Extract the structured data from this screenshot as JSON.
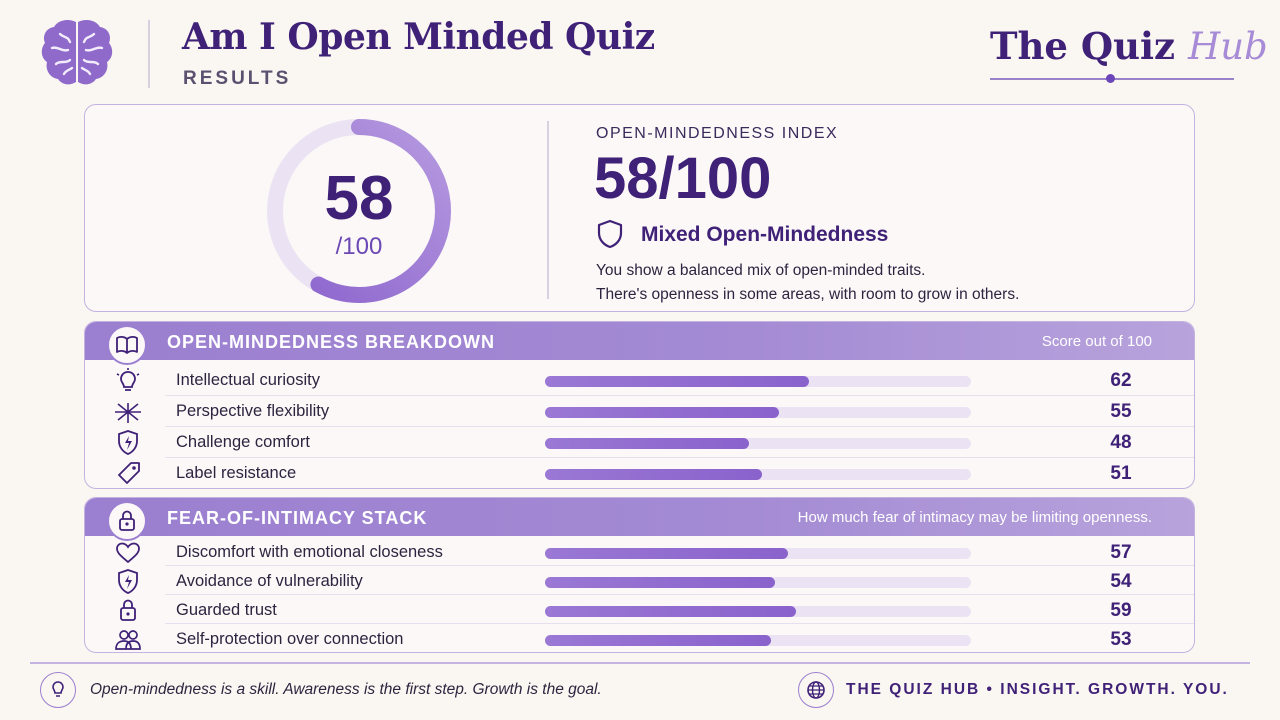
{
  "header": {
    "title": "Am I Open Minded Quiz",
    "subtitle": "RESULTS",
    "logo_main": "The Quiz",
    "logo_accent": "Hub"
  },
  "score": {
    "value": "58",
    "out_of": "/100",
    "fraction": 0.58,
    "index_label": "OPEN-MINDEDNESS INDEX",
    "index_value": "58/100",
    "level": "Mixed Open-Mindedness",
    "description_line1": "You show a balanced mix of open-minded traits.",
    "description_line2": "There's openness in some areas, with room to grow in others."
  },
  "breakdown": {
    "title": "OPEN-MINDEDNESS BREAKDOWN",
    "note": "Score out of 100",
    "rows": [
      {
        "label": "Intellectual curiosity",
        "score": "62",
        "value": 62,
        "icon": "lightbulb-icon"
      },
      {
        "label": "Perspective flexibility",
        "score": "55",
        "value": 55,
        "icon": "arrows-icon"
      },
      {
        "label": "Challenge comfort",
        "score": "48",
        "value": 48,
        "icon": "shield-bolt-icon"
      },
      {
        "label": "Label resistance",
        "score": "51",
        "value": 51,
        "icon": "tag-icon"
      }
    ]
  },
  "intimacy": {
    "title": "FEAR-OF-INTIMACY STACK",
    "note": "How much fear of intimacy may be limiting openness.",
    "rows": [
      {
        "label": "Discomfort with emotional closeness",
        "score": "57",
        "value": 57,
        "icon": "heart-icon"
      },
      {
        "label": "Avoidance of vulnerability",
        "score": "54",
        "value": 54,
        "icon": "shield-bolt-icon"
      },
      {
        "label": "Guarded trust",
        "score": "59",
        "value": 59,
        "icon": "lock-icon"
      },
      {
        "label": "Self-protection over connection",
        "score": "53",
        "value": 53,
        "icon": "people-icon"
      }
    ]
  },
  "footer": {
    "tagline": "Open-mindedness is a skill. Awareness is the first step. Growth is the goal.",
    "brand": "THE QUIZ HUB • INSIGHT. GROWTH. YOU."
  },
  "colors": {
    "primary": "#3f2178",
    "accent": "#9b7fd0",
    "track": "#ebe3f3",
    "background": "#faf6f1"
  }
}
